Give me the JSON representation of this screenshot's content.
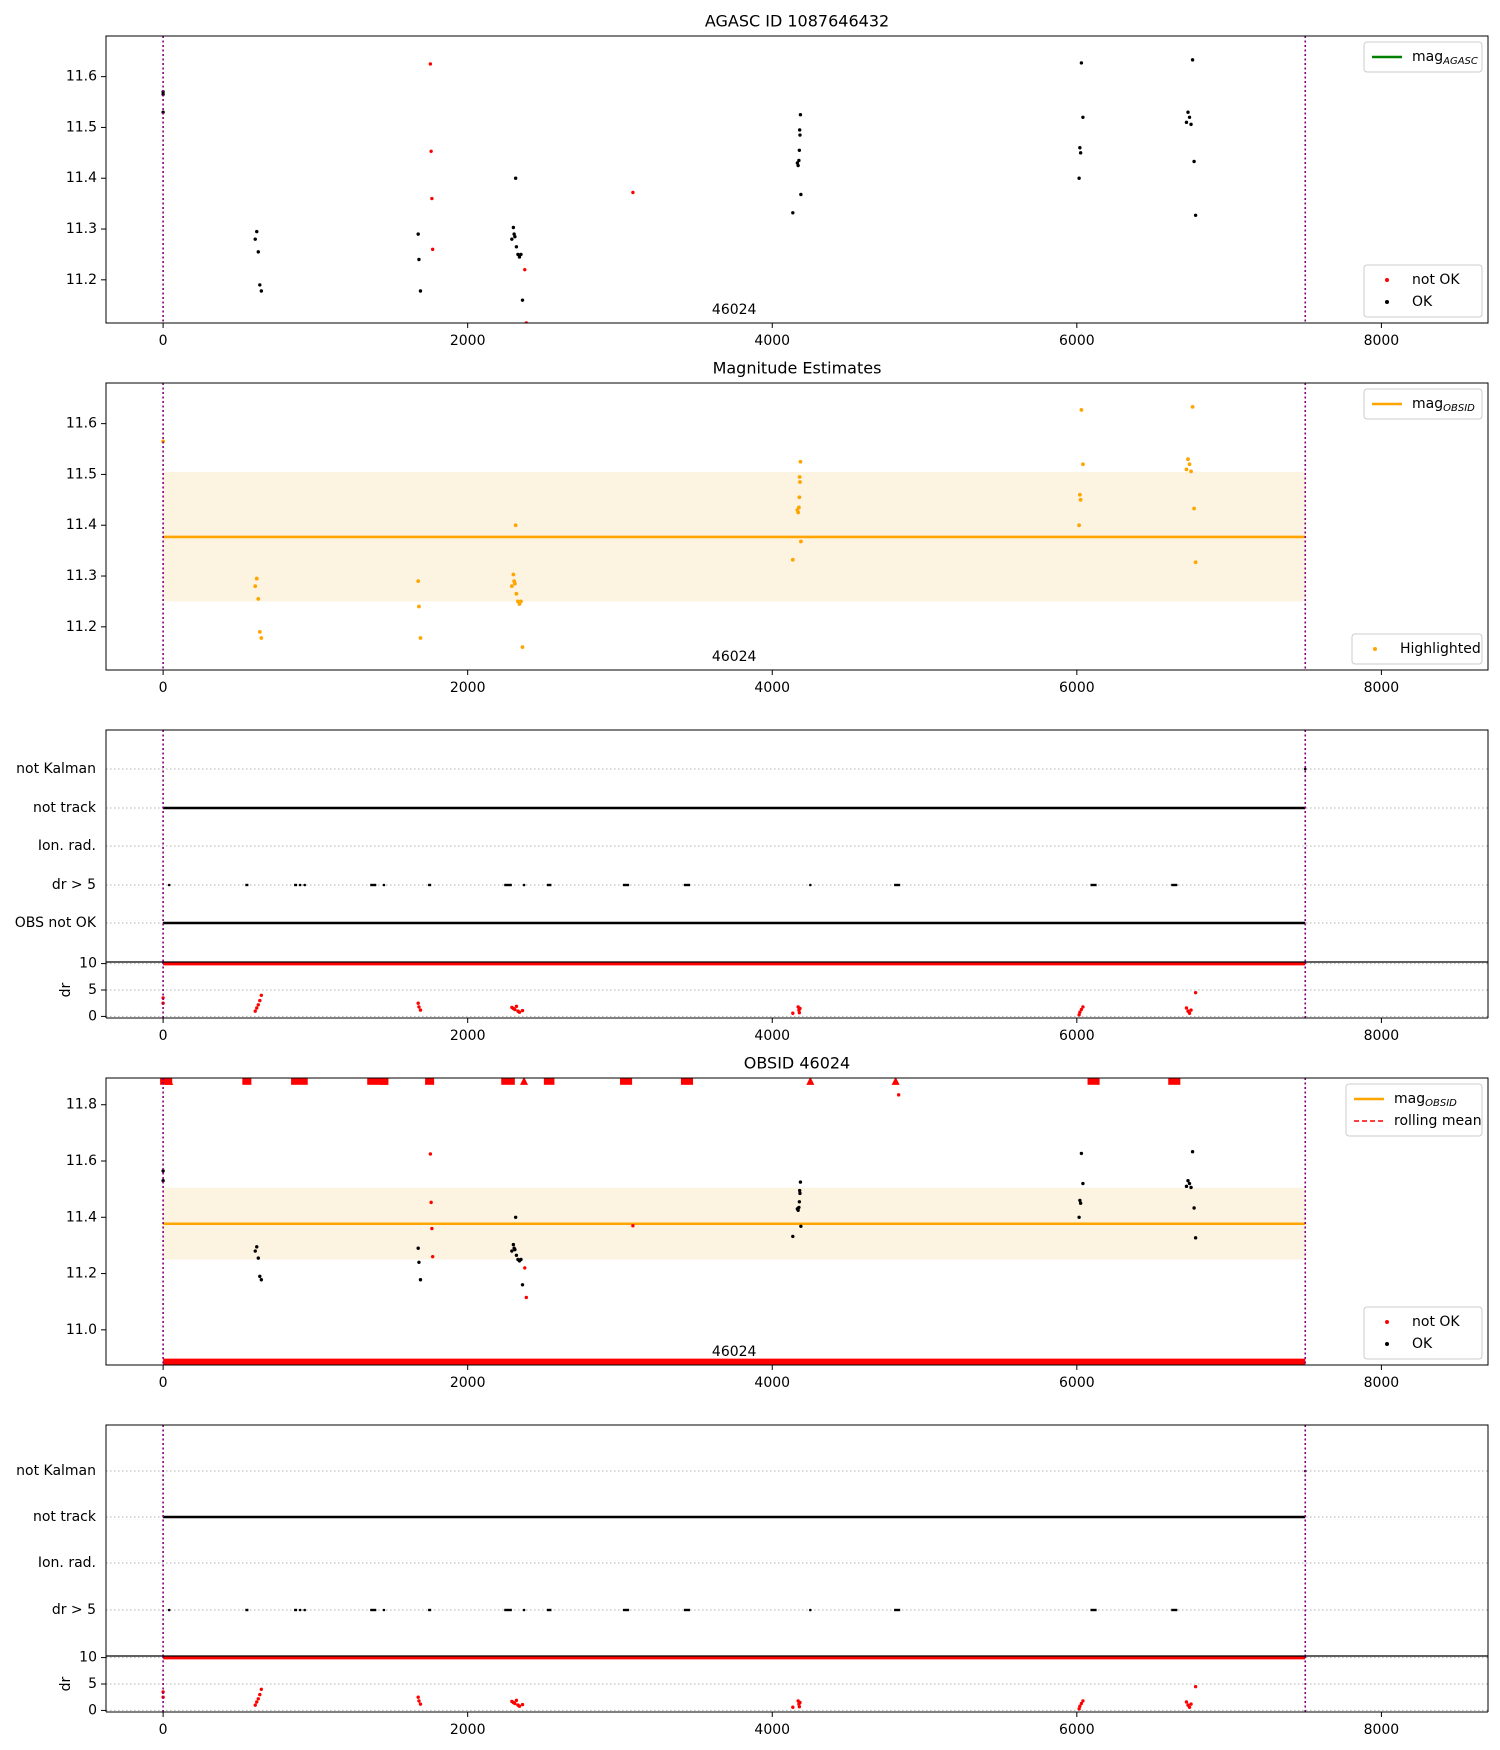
{
  "figure": {
    "background": "#ffffff",
    "frame_color": "#000000",
    "grid_color": "#b0b0b0"
  },
  "chart_data": [
    {
      "id": "agasc",
      "type": "scatter",
      "title": "AGASC ID 1087646432",
      "xlim": [
        -375,
        8700
      ],
      "ylim": [
        11.115,
        11.68
      ],
      "xticks": [
        0,
        2000,
        4000,
        6000,
        8000
      ],
      "yticks": [
        11.2,
        11.3,
        11.4,
        11.5,
        11.6
      ],
      "vlines": [
        {
          "x": 0,
          "color": "#800080",
          "style": "dotted"
        },
        {
          "x": 7500,
          "color": "#800080",
          "style": "dotted"
        }
      ],
      "annotation": {
        "text": "46024",
        "x": 3750
      },
      "legend_top": {
        "position": "top-right",
        "items": [
          {
            "label": "mag",
            "sub": "AGASC",
            "kind": "line",
            "color": "#008000"
          }
        ]
      },
      "legend_bottom": {
        "position": "bottom-right",
        "items": [
          {
            "label": "not OK",
            "kind": "dot",
            "color": "#ff0000"
          },
          {
            "label": "OK",
            "kind": "dot",
            "color": "#000000"
          }
        ]
      },
      "series": [
        {
          "name": "OK",
          "color": "#000000",
          "x": [
            0,
            0,
            0,
            605,
            615,
            625,
            635,
            645,
            1675,
            1680,
            1690,
            2290,
            2300,
            2305,
            2310,
            2315,
            2320,
            2330,
            2340,
            2350,
            2360,
            4135,
            4165,
            4170,
            4175,
            4178,
            4180,
            4182,
            4185,
            4188,
            6015,
            6020,
            6025,
            6030,
            6040,
            6720,
            6730,
            6740,
            6750,
            6760,
            6770,
            6780
          ],
          "y": [
            11.57,
            11.565,
            11.53,
            11.28,
            11.295,
            11.255,
            11.19,
            11.178,
            11.29,
            11.24,
            11.178,
            11.28,
            11.303,
            11.29,
            11.285,
            11.4,
            11.265,
            11.25,
            11.245,
            11.25,
            11.16,
            11.332,
            11.43,
            11.425,
            11.435,
            11.455,
            11.495,
            11.485,
            11.525,
            11.368,
            11.4,
            11.46,
            11.45,
            11.627,
            11.52,
            11.51,
            11.53,
            11.52,
            11.506,
            11.633,
            11.433,
            11.327
          ],
          "markers": [
            {
              "shape": "dot",
              "fills": [
                0,
                1
              ]
            }
          ]
        },
        {
          "name": "not OK",
          "color": "#ff0000",
          "x": [
            1755,
            1760,
            1765,
            1770,
            2375,
            2385,
            3085
          ],
          "y": [
            11.625,
            11.453,
            11.36,
            11.26,
            11.22,
            11.115,
            11.372
          ]
        }
      ]
    },
    {
      "id": "estimates",
      "type": "scatter",
      "title": "Magnitude Estimates",
      "xlim": [
        -375,
        8700
      ],
      "ylim": [
        11.115,
        11.68
      ],
      "xticks": [
        0,
        2000,
        4000,
        6000,
        8000
      ],
      "yticks": [
        11.2,
        11.3,
        11.4,
        11.5,
        11.6
      ],
      "vlines": [
        {
          "x": 0,
          "color": "#800080",
          "style": "dotted"
        },
        {
          "x": 7500,
          "color": "#800080",
          "style": "dotted"
        }
      ],
      "annotation": {
        "text": "46024",
        "x": 3750
      },
      "hline": {
        "y": 11.377,
        "x0": 0,
        "x1": 7500,
        "color": "#ffa500"
      },
      "band": {
        "y0": 11.25,
        "y1": 11.505,
        "x0": 0,
        "x1": 7500,
        "color": "#fdf3e1"
      },
      "legend_top": {
        "position": "top-right",
        "items": [
          {
            "label": "mag",
            "sub": "OBSID",
            "kind": "line",
            "color": "#ffa500"
          }
        ]
      },
      "legend_bottom": {
        "position": "bottom-right",
        "items": [
          {
            "label": "Highlighted",
            "kind": "dot",
            "color": "#ffa500"
          }
        ]
      },
      "series": [
        {
          "name": "Highlighted",
          "color": "#ffa500",
          "x": [
            0,
            605,
            615,
            625,
            635,
            645,
            1675,
            1680,
            1690,
            2290,
            2300,
            2305,
            2310,
            2315,
            2320,
            2330,
            2340,
            2350,
            2360,
            4135,
            4165,
            4170,
            4175,
            4178,
            4180,
            4182,
            4185,
            4188,
            6015,
            6020,
            6025,
            6030,
            6040,
            6720,
            6730,
            6740,
            6750,
            6760,
            6770,
            6780
          ],
          "y": [
            11.565,
            11.28,
            11.295,
            11.255,
            11.19,
            11.178,
            11.29,
            11.24,
            11.178,
            11.28,
            11.303,
            11.29,
            11.285,
            11.4,
            11.265,
            11.25,
            11.245,
            11.25,
            11.16,
            11.332,
            11.43,
            11.425,
            11.435,
            11.455,
            11.495,
            11.485,
            11.525,
            11.368,
            11.4,
            11.46,
            11.45,
            11.627,
            11.52,
            11.51,
            11.53,
            11.52,
            11.506,
            11.633,
            11.433,
            11.327
          ]
        }
      ]
    },
    {
      "id": "flags1",
      "type": "scatter",
      "xlim": [
        -375,
        8700
      ],
      "categories": [
        "not Kalman",
        "not track",
        "Ion. rad.",
        "dr > 5",
        "OBS not OK"
      ],
      "vlines": [
        {
          "x": 0,
          "color": "#800080",
          "style": "dotted"
        },
        {
          "x": 7500,
          "color": "#800080",
          "style": "dotted"
        }
      ],
      "rows": [
        {
          "label": "not Kalman",
          "ranges": [],
          "points": [
            7500
          ]
        },
        {
          "label": "not track",
          "ranges": [
            [
              0,
              7500
            ]
          ],
          "points": []
        },
        {
          "label": "Ion. rad.",
          "ranges": [],
          "points": []
        },
        {
          "label": "dr > 5",
          "ranges": [
            [
              540,
              560
            ],
            [
              860,
              880
            ],
            [
              1360,
              1400
            ],
            [
              1740,
              1760
            ],
            [
              2240,
              2290
            ],
            [
              2520,
              2550
            ],
            [
              3020,
              3060
            ],
            [
              3420,
              3460
            ],
            [
              4800,
              4840
            ],
            [
              6090,
              6130
            ],
            [
              6620,
              6660
            ]
          ],
          "points": [
            40,
            900,
            930,
            1450,
            2370,
            4250
          ]
        },
        {
          "label": "OBS not OK",
          "ranges": [
            [
              0,
              7500
            ]
          ],
          "points": []
        }
      ]
    },
    {
      "id": "dr1",
      "type": "scatter",
      "ylabel": "dr",
      "xlim": [
        -375,
        8700
      ],
      "ylim": [
        -0.3,
        10.3
      ],
      "xticks": [
        0,
        2000,
        4000,
        6000,
        8000
      ],
      "yticks": [
        0,
        5,
        10
      ],
      "vlines": [
        {
          "x": 0,
          "color": "#800080",
          "style": "dotted"
        },
        {
          "x": 7500,
          "color": "#800080",
          "style": "dotted"
        }
      ],
      "clipped_line": {
        "y": 10,
        "x0": 0,
        "x1": 7500,
        "color": "#ff0000"
      },
      "series": [
        {
          "name": "dr",
          "color": "#ff0000",
          "x": [
            0,
            0,
            605,
            615,
            625,
            635,
            645,
            1675,
            1680,
            1690,
            2290,
            2300,
            2310,
            2320,
            2330,
            2340,
            2360,
            4135,
            4170,
            4175,
            4178,
            4182,
            6015,
            6020,
            6030,
            6040,
            6720,
            6730,
            6740,
            6750,
            6780
          ],
          "y": [
            3.5,
            2.5,
            1.0,
            1.6,
            2.2,
            3.0,
            4.0,
            2.5,
            1.8,
            1.2,
            1.7,
            1.5,
            1.3,
            1.9,
            1.0,
            0.8,
            1.1,
            0.6,
            1.8,
            1.2,
            0.7,
            1.5,
            0.3,
            0.8,
            1.3,
            1.8,
            1.6,
            1.0,
            0.6,
            1.2,
            4.5
          ]
        }
      ]
    },
    {
      "id": "obsid",
      "type": "scatter",
      "title": "OBSID 46024",
      "xlim": [
        -375,
        8700
      ],
      "ylim": [
        10.875,
        11.895
      ],
      "xticks": [
        0,
        2000,
        4000,
        6000,
        8000
      ],
      "yticks": [
        11.0,
        11.2,
        11.4,
        11.6,
        11.8
      ],
      "vlines": [
        {
          "x": 0,
          "color": "#800080",
          "style": "dotted"
        },
        {
          "x": 7500,
          "color": "#800080",
          "style": "dotted"
        }
      ],
      "annotation": {
        "text": "46024",
        "x": 3750
      },
      "hline": {
        "y": 11.377,
        "x0": 0,
        "x1": 7500,
        "color": "#ffa500"
      },
      "band": {
        "y0": 11.25,
        "y1": 11.505,
        "x0": 0,
        "x1": 7500,
        "color": "#fdf3e1"
      },
      "bottom_line": {
        "y": 10.885,
        "x0": 0,
        "x1": 7500,
        "color": "#ff0000"
      },
      "top_markers": {
        "y": 11.885,
        "color": "#ff0000",
        "ranges": [
          [
            0,
            40
          ],
          [
            540,
            560
          ],
          [
            860,
            930
          ],
          [
            1360,
            1460
          ],
          [
            1740,
            1760
          ],
          [
            2240,
            2290
          ],
          [
            2520,
            2550
          ],
          [
            3020,
            3060
          ],
          [
            3420,
            3460
          ],
          [
            6090,
            6130
          ],
          [
            6620,
            6660
          ]
        ],
        "points": [
          40,
          1450,
          2370,
          4250,
          4810
        ]
      },
      "legend_top": {
        "position": "top-right",
        "items": [
          {
            "label": "mag",
            "sub": "OBSID",
            "kind": "line",
            "color": "#ffa500"
          },
          {
            "label": "rolling mean",
            "kind": "dashed",
            "color": "#ff0000"
          }
        ]
      },
      "legend_bottom": {
        "position": "bottom-right",
        "items": [
          {
            "label": "not OK",
            "kind": "dot",
            "color": "#ff0000"
          },
          {
            "label": "OK",
            "kind": "dot",
            "color": "#000000"
          }
        ]
      },
      "series": [
        {
          "name": "OK",
          "color": "#000000",
          "x": [
            0,
            0,
            605,
            615,
            625,
            635,
            645,
            1675,
            1680,
            1690,
            2290,
            2300,
            2305,
            2310,
            2315,
            2320,
            2330,
            2340,
            2350,
            2360,
            4135,
            4165,
            4170,
            4175,
            4178,
            4180,
            4182,
            4185,
            4188,
            6015,
            6020,
            6025,
            6030,
            6040,
            6720,
            6730,
            6740,
            6750,
            6760,
            6770,
            6780
          ],
          "y": [
            11.565,
            11.53,
            11.28,
            11.295,
            11.255,
            11.19,
            11.178,
            11.29,
            11.24,
            11.178,
            11.28,
            11.303,
            11.29,
            11.285,
            11.4,
            11.265,
            11.25,
            11.245,
            11.25,
            11.16,
            11.332,
            11.43,
            11.425,
            11.435,
            11.455,
            11.495,
            11.485,
            11.525,
            11.368,
            11.4,
            11.46,
            11.45,
            11.627,
            11.52,
            11.51,
            11.53,
            11.52,
            11.506,
            11.633,
            11.433,
            11.327
          ]
        },
        {
          "name": "not OK",
          "color": "#ff0000",
          "x": [
            1755,
            1760,
            1765,
            1770,
            2375,
            2385,
            3085,
            4830
          ],
          "y": [
            11.625,
            11.453,
            11.36,
            11.26,
            11.22,
            11.115,
            11.37,
            11.835
          ]
        }
      ]
    },
    {
      "id": "flags2",
      "type": "scatter",
      "xlim": [
        -375,
        8700
      ],
      "categories": [
        "not Kalman",
        "not track",
        "Ion. rad.",
        "dr > 5"
      ],
      "vlines": [
        {
          "x": 0,
          "color": "#800080",
          "style": "dotted"
        },
        {
          "x": 7500,
          "color": "#800080",
          "style": "dotted"
        }
      ],
      "rows": [
        {
          "label": "not Kalman",
          "ranges": [],
          "points": [
            7500
          ]
        },
        {
          "label": "not track",
          "ranges": [
            [
              0,
              7500
            ]
          ],
          "points": []
        },
        {
          "label": "Ion. rad.",
          "ranges": [],
          "points": []
        },
        {
          "label": "dr > 5",
          "ranges": [
            [
              540,
              560
            ],
            [
              860,
              880
            ],
            [
              1360,
              1400
            ],
            [
              1740,
              1760
            ],
            [
              2240,
              2290
            ],
            [
              2520,
              2550
            ],
            [
              3020,
              3060
            ],
            [
              3420,
              3460
            ],
            [
              4800,
              4840
            ],
            [
              6090,
              6130
            ],
            [
              6620,
              6660
            ]
          ],
          "points": [
            40,
            900,
            930,
            1450,
            2370,
            4250
          ]
        }
      ]
    },
    {
      "id": "dr2",
      "type": "scatter",
      "ylabel": "dr",
      "xlim": [
        -375,
        8700
      ],
      "ylim": [
        -0.3,
        10.3
      ],
      "xticks": [
        0,
        2000,
        4000,
        6000,
        8000
      ],
      "yticks": [
        0,
        5,
        10
      ],
      "vlines": [
        {
          "x": 0,
          "color": "#800080",
          "style": "dotted"
        },
        {
          "x": 7500,
          "color": "#800080",
          "style": "dotted"
        }
      ],
      "clipped_line": {
        "y": 10,
        "x0": 0,
        "x1": 7500,
        "color": "#ff0000"
      },
      "series": [
        {
          "name": "dr",
          "color": "#ff0000",
          "x": [
            0,
            0,
            605,
            615,
            625,
            635,
            645,
            1675,
            1680,
            1690,
            2290,
            2300,
            2310,
            2320,
            2330,
            2340,
            2360,
            4135,
            4170,
            4175,
            4178,
            4182,
            6015,
            6020,
            6030,
            6040,
            6720,
            6730,
            6740,
            6750,
            6780
          ],
          "y": [
            3.5,
            2.5,
            1.0,
            1.6,
            2.2,
            3.0,
            4.0,
            2.5,
            1.8,
            1.2,
            1.7,
            1.5,
            1.3,
            1.9,
            1.0,
            0.8,
            1.1,
            0.6,
            1.8,
            1.2,
            0.7,
            1.5,
            0.3,
            0.8,
            1.3,
            1.8,
            1.6,
            1.0,
            0.6,
            1.2,
            4.5
          ]
        }
      ]
    }
  ]
}
